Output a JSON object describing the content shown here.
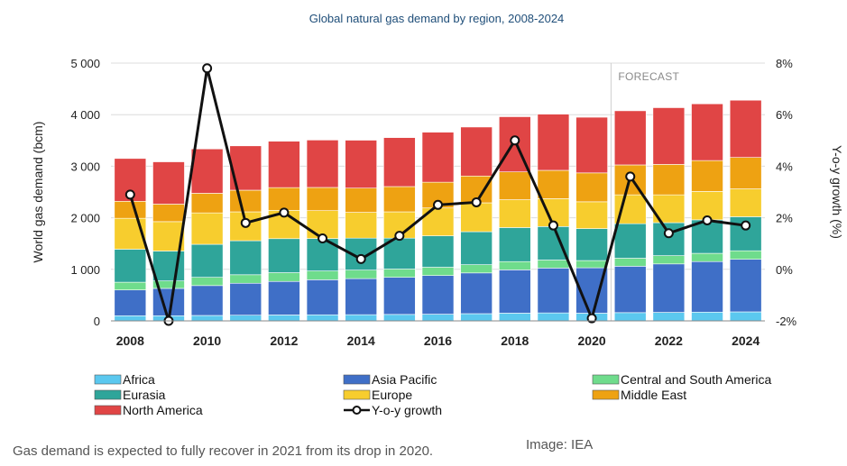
{
  "colors": {
    "Africa": "#5bc8ef",
    "Asia Pacific": "#3f6fc7",
    "Central and South America": "#6fdc8c",
    "Eurasia": "#2fa59a",
    "Europe": "#f7cd2e",
    "Middle East": "#eea212",
    "North America": "#e04545",
    "line": "#111111"
  },
  "caption": "Gas demand is expected to fully recover in 2021 from its drop in 2020.",
  "source": "Image: IEA",
  "chart_data": {
    "type": "bar",
    "stacked": true,
    "title": "Global natural gas demand by region, 2008-2024",
    "ylabel": "World gas demand (bcm)",
    "y2label": "Y-o-y growth (%)",
    "ylim": [
      0,
      5000
    ],
    "y2lim": [
      -2,
      8
    ],
    "yticks": [
      "0",
      "1 000",
      "2 000",
      "3 000",
      "4 000",
      "5 000"
    ],
    "y2ticks": [
      "-2%",
      "0%",
      "2%",
      "4%",
      "6%",
      "8%"
    ],
    "xtick_labels": [
      "2008",
      "2010",
      "2012",
      "2014",
      "2016",
      "2018",
      "2020",
      "2022",
      "2024"
    ],
    "annotation": "FORECAST",
    "forecast_start": 2021,
    "categories": [
      "2008",
      "2009",
      "2010",
      "2011",
      "2012",
      "2013",
      "2014",
      "2015",
      "2016",
      "2017",
      "2018",
      "2019",
      "2020",
      "2021",
      "2022",
      "2023",
      "2024"
    ],
    "series": [
      {
        "name": "Africa",
        "values": [
          100,
          100,
          105,
          110,
          115,
          118,
          120,
          125,
          130,
          140,
          150,
          155,
          150,
          160,
          165,
          170,
          175
        ]
      },
      {
        "name": "Asia Pacific",
        "values": [
          500,
          530,
          580,
          620,
          650,
          680,
          700,
          720,
          750,
          790,
          840,
          870,
          880,
          900,
          940,
          980,
          1020
        ]
      },
      {
        "name": "Central and South America",
        "values": [
          150,
          145,
          160,
          165,
          170,
          170,
          165,
          160,
          160,
          160,
          160,
          155,
          140,
          155,
          160,
          160,
          165
        ]
      },
      {
        "name": "Eurasia",
        "values": [
          640,
          580,
          640,
          660,
          660,
          630,
          620,
          600,
          610,
          640,
          660,
          650,
          620,
          670,
          640,
          650,
          660
        ]
      },
      {
        "name": "Europe",
        "values": [
          600,
          570,
          610,
          560,
          550,
          540,
          500,
          510,
          540,
          560,
          540,
          540,
          520,
          560,
          540,
          550,
          540
        ]
      },
      {
        "name": "Middle East",
        "values": [
          330,
          340,
          380,
          420,
          440,
          450,
          470,
          490,
          500,
          520,
          540,
          550,
          560,
          580,
          590,
          600,
          610
        ]
      },
      {
        "name": "North America",
        "values": [
          830,
          820,
          860,
          860,
          900,
          920,
          930,
          950,
          970,
          950,
          1070,
          1090,
          1080,
          1050,
          1100,
          1100,
          1110
        ]
      }
    ],
    "growth": {
      "name": "Y-o-y growth",
      "values": [
        2.9,
        -2.0,
        7.8,
        1.8,
        2.2,
        1.2,
        0.4,
        1.3,
        2.5,
        2.6,
        5.0,
        1.7,
        -1.9,
        3.6,
        1.4,
        1.9,
        1.7
      ]
    },
    "legend": [
      "Africa",
      "Asia Pacific",
      "Central and South America",
      "Eurasia",
      "Europe",
      "Middle East",
      "North America",
      "Y-o-y growth"
    ],
    "legend_position": "bottom"
  }
}
